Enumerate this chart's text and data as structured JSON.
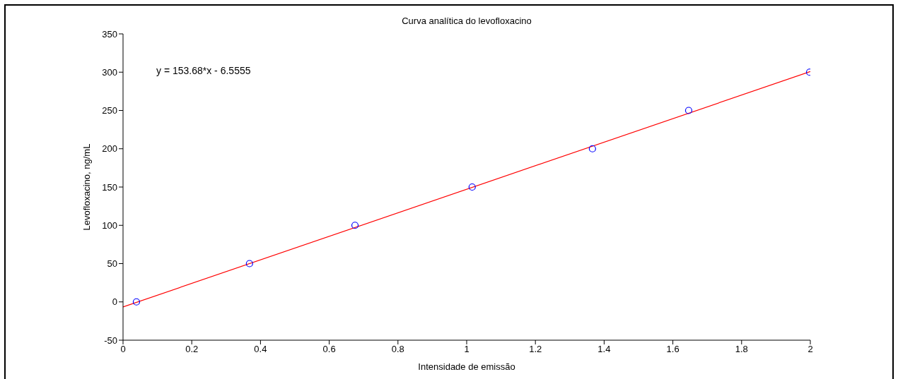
{
  "chart_data": {
    "type": "scatter",
    "title": "Curva analítica do levofloxacino",
    "xlabel": "Intensidade de emissão",
    "ylabel": "Levofloxacino, ng/mL",
    "x": [
      0.039,
      0.368,
      0.675,
      1.016,
      1.366,
      1.646,
      1.998
    ],
    "series": [
      {
        "type": "scatter",
        "color": "#0000ff",
        "marker": "circle",
        "values": [
          0,
          50,
          100,
          150,
          200,
          250,
          300
        ]
      },
      {
        "type": "line",
        "color": "#ff0000",
        "marker": "none",
        "x": [
          0,
          2
        ],
        "values": [
          -6.6,
          300.8
        ]
      }
    ],
    "xlim": [
      0,
      2
    ],
    "xticks": [
      0,
      0.2,
      0.4,
      0.6,
      0.8,
      1,
      1.2,
      1.4,
      1.6,
      1.8,
      2
    ],
    "ylim": [
      -50,
      350
    ],
    "yticks": [
      -50,
      0,
      50,
      100,
      150,
      200,
      250,
      300,
      350
    ],
    "grid": false,
    "legend": false,
    "annotations": [
      "y = 153.68*x - 6.5555"
    ]
  }
}
